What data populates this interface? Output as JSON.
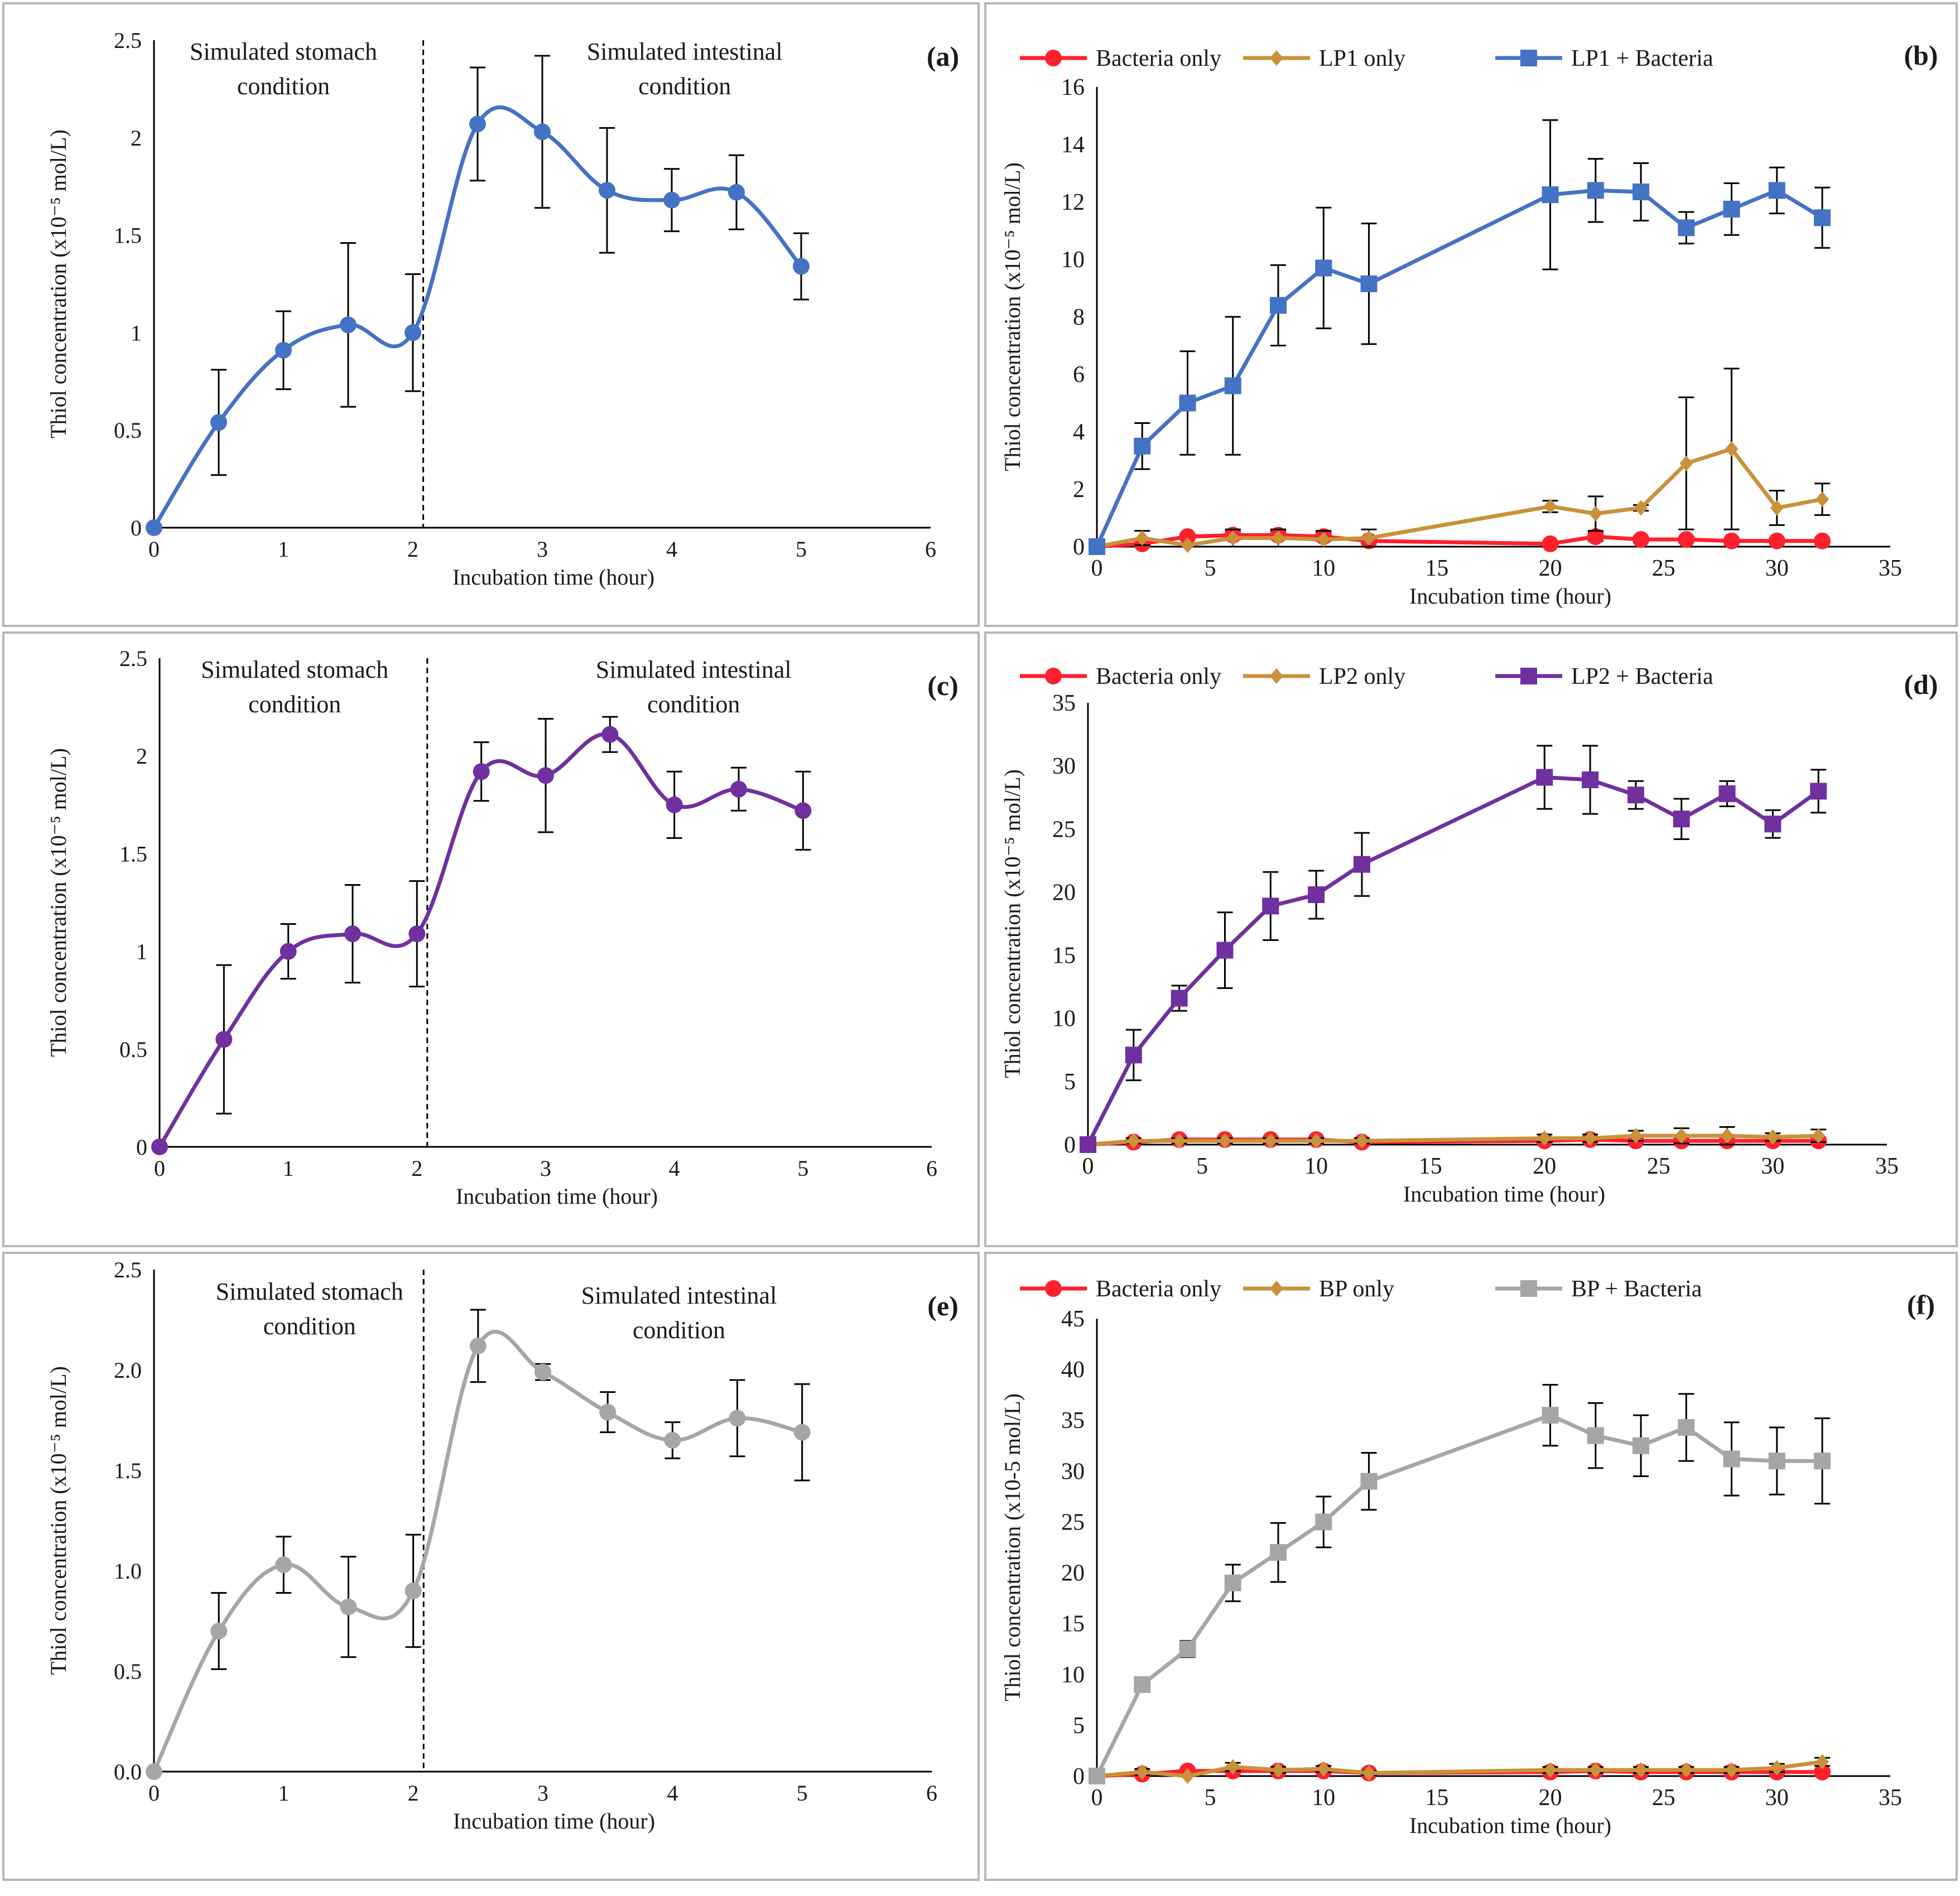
{
  "figure": {
    "background": "#ffffff",
    "frame_color": "#b7b7b7"
  },
  "chart_data": [
    {
      "panel": "(a)",
      "type": "line",
      "smooth": true,
      "ylabel": "Thiol concentration (x10⁻⁵ mol/L)",
      "xlabel": "Incubation time (hour)",
      "xlim": [
        0,
        6
      ],
      "ylim": [
        0,
        2.5
      ],
      "xticks": [
        "0",
        "1",
        "2",
        "3",
        "4",
        "5",
        "6"
      ],
      "yticks": [
        "0",
        "0.5",
        "1",
        "1.5",
        "2",
        "2.5"
      ],
      "divider_x": 2.08,
      "region_labels": [
        {
          "lines": [
            "Simulated stomach",
            "condition"
          ],
          "x": 1.0,
          "y": 2.4
        },
        {
          "lines": [
            "Simulated intestinal",
            "condition"
          ],
          "x": 4.1,
          "y": 2.4
        }
      ],
      "legend": [],
      "series": [
        {
          "name": "",
          "color": "#4472c4",
          "marker": "circle",
          "x": [
            0,
            0.5,
            1,
            1.5,
            2,
            2.5,
            3,
            3.5,
            4,
            4.5,
            5
          ],
          "y": [
            0,
            0.54,
            0.91,
            1.04,
            1.0,
            2.07,
            2.03,
            1.73,
            1.68,
            1.72,
            1.34
          ],
          "err": [
            0,
            0.27,
            0.2,
            0.42,
            0.3,
            0.29,
            0.39,
            0.32,
            0.16,
            0.19,
            0.17
          ]
        }
      ]
    },
    {
      "panel": "(b)",
      "type": "line",
      "smooth": false,
      "ylabel": "Thiol concentration (x10⁻⁵ mol/L)",
      "xlabel": "Incubation time (hour)",
      "xlim": [
        0,
        35
      ],
      "ylim": [
        0,
        16
      ],
      "xticks": [
        "0",
        "5",
        "10",
        "15",
        "20",
        "25",
        "30",
        "35"
      ],
      "yticks": [
        "0",
        "2",
        "4",
        "6",
        "8",
        "10",
        "12",
        "14",
        "16"
      ],
      "legend": [
        "Bacteria only",
        "LP1 only",
        "LP1 + Bacteria"
      ],
      "series": [
        {
          "name": "Bacteria only",
          "color": "#ff1f2d",
          "marker": "circle",
          "x": [
            0,
            2,
            4,
            6,
            8,
            10,
            12,
            20,
            22,
            24,
            26,
            28,
            30,
            32
          ],
          "y": [
            0,
            0.1,
            0.35,
            0.4,
            0.4,
            0.35,
            0.2,
            0.1,
            0.35,
            0.25,
            0.25,
            0.2,
            0.2,
            0.2
          ],
          "err": [
            0,
            0.05,
            0.1,
            0.15,
            0.15,
            0.15,
            0.1,
            0.05,
            0.15,
            0.1,
            0.1,
            0.1,
            0.1,
            0.1
          ]
        },
        {
          "name": "LP1 only",
          "color": "#c9913a",
          "marker": "diamond",
          "x": [
            0,
            2,
            4,
            6,
            8,
            10,
            12,
            20,
            22,
            24,
            26,
            28,
            30,
            32
          ],
          "y": [
            0,
            0.3,
            0.05,
            0.3,
            0.3,
            0.25,
            0.3,
            1.4,
            1.15,
            1.35,
            2.9,
            3.4,
            1.35,
            1.65
          ],
          "err": [
            0,
            0.25,
            0.05,
            0.3,
            0.3,
            0.3,
            0.3,
            0.2,
            0.6,
            0.1,
            2.3,
            2.8,
            0.6,
            0.55
          ]
        },
        {
          "name": "LP1 + Bacteria",
          "color": "#4472c4",
          "marker": "square",
          "x": [
            0,
            2,
            4,
            6,
            8,
            10,
            12,
            20,
            22,
            24,
            26,
            28,
            30,
            32
          ],
          "y": [
            0,
            3.5,
            5.0,
            5.6,
            8.4,
            9.7,
            9.15,
            12.25,
            12.4,
            12.35,
            11.1,
            11.75,
            12.4,
            11.45
          ],
          "err": [
            0,
            0.8,
            1.8,
            2.4,
            1.4,
            2.1,
            2.1,
            2.6,
            1.1,
            1.0,
            0.55,
            0.9,
            0.8,
            1.05
          ]
        }
      ]
    },
    {
      "panel": "(c)",
      "type": "line",
      "smooth": true,
      "ylabel": "Thiol concentration (x10⁻⁵ mol/L)",
      "xlabel": "Incubation time (hour)",
      "xlim": [
        0,
        6
      ],
      "ylim": [
        0,
        2.5
      ],
      "xticks": [
        "0",
        "1",
        "2",
        "3",
        "4",
        "5",
        "6"
      ],
      "yticks": [
        "0",
        "0.5",
        "1",
        "1.5",
        "2",
        "2.5"
      ],
      "divider_x": 2.08,
      "region_labels": [
        {
          "lines": [
            "Simulated stomach",
            "condition"
          ],
          "x": 1.05,
          "y": 2.4
        },
        {
          "lines": [
            "Simulated intestinal",
            "condition"
          ],
          "x": 4.15,
          "y": 2.4
        }
      ],
      "legend": [],
      "series": [
        {
          "name": "",
          "color": "#7030a0",
          "marker": "circle",
          "x": [
            0,
            0.5,
            1,
            1.5,
            2,
            2.5,
            3,
            3.5,
            4,
            4.5,
            5
          ],
          "y": [
            0,
            0.55,
            1.0,
            1.09,
            1.09,
            1.92,
            1.9,
            2.11,
            1.75,
            1.83,
            1.72
          ],
          "err": [
            0,
            0.38,
            0.14,
            0.25,
            0.27,
            0.15,
            0.29,
            0.09,
            0.17,
            0.11,
            0.2
          ]
        }
      ]
    },
    {
      "panel": "(d)",
      "type": "line",
      "smooth": false,
      "ylabel": "Thiol concentration (x10⁻⁵ mol/L)",
      "xlabel": "Incubation time (hour)",
      "xlim": [
        0,
        35
      ],
      "ylim": [
        0,
        35
      ],
      "xticks": [
        "0",
        "5",
        "10",
        "15",
        "20",
        "25",
        "30",
        "35"
      ],
      "yticks": [
        "0",
        "5",
        "10",
        "15",
        "20",
        "25",
        "30",
        "35"
      ],
      "legend": [
        "Bacteria only",
        "LP2 only",
        "LP2 + Bacteria"
      ],
      "series": [
        {
          "name": "Bacteria only",
          "color": "#ff1f2d",
          "marker": "circle",
          "x": [
            0,
            2,
            4,
            6,
            8,
            10,
            12,
            20,
            22,
            24,
            26,
            28,
            30,
            32
          ],
          "y": [
            0,
            0.2,
            0.4,
            0.4,
            0.4,
            0.4,
            0.2,
            0.3,
            0.4,
            0.3,
            0.3,
            0.3,
            0.3,
            0.3
          ],
          "err": [
            0,
            0.1,
            0.2,
            0.2,
            0.2,
            0.2,
            0.1,
            0.1,
            0.2,
            0.1,
            0.1,
            0.1,
            0.1,
            0.1
          ]
        },
        {
          "name": "LP2 only",
          "color": "#c9913a",
          "marker": "diamond",
          "x": [
            0,
            2,
            4,
            6,
            8,
            10,
            12,
            20,
            22,
            24,
            26,
            28,
            30,
            32
          ],
          "y": [
            0,
            0.3,
            0.3,
            0.3,
            0.3,
            0.3,
            0.3,
            0.5,
            0.5,
            0.7,
            0.7,
            0.7,
            0.6,
            0.7
          ],
          "err": [
            0,
            0.2,
            0.2,
            0.2,
            0.2,
            0.2,
            0.2,
            0.3,
            0.3,
            0.4,
            0.6,
            0.7,
            0.3,
            0.5
          ]
        },
        {
          "name": "LP2 + Bacteria",
          "color": "#7030a0",
          "marker": "square",
          "x": [
            0,
            2,
            4,
            6,
            8,
            10,
            12,
            20,
            22,
            24,
            26,
            28,
            30,
            32
          ],
          "y": [
            0,
            7.1,
            11.6,
            15.4,
            18.9,
            19.8,
            22.2,
            29.1,
            28.9,
            27.7,
            25.8,
            27.8,
            25.4,
            28.0
          ],
          "err": [
            0,
            2.0,
            1.0,
            3.0,
            2.7,
            1.9,
            2.5,
            2.5,
            2.7,
            1.1,
            1.6,
            1.0,
            1.1,
            1.7
          ]
        }
      ]
    },
    {
      "panel": "(e)",
      "type": "line",
      "smooth": true,
      "ylabel": "Thiol concentration (x10⁻⁵ mol/L)",
      "xlabel": "Incubation time (hour)",
      "xlim": [
        0,
        6
      ],
      "ylim": [
        0,
        2.5
      ],
      "xticks": [
        "0",
        "1",
        "2",
        "3",
        "4",
        "5",
        "6"
      ],
      "yticks": [
        "0.0",
        "0.5",
        "1.0",
        "1.5",
        "2.0",
        "2.5"
      ],
      "divider_x": 2.08,
      "region_labels": [
        {
          "lines": [
            "Simulated stomach",
            "condition"
          ],
          "x": 1.2,
          "y": 2.35
        },
        {
          "lines": [
            "Simulated intestinal",
            "condition"
          ],
          "x": 4.05,
          "y": 2.33
        }
      ],
      "legend": [],
      "series": [
        {
          "name": "",
          "color": "#a6a6a6",
          "marker": "circle",
          "x": [
            0,
            0.5,
            1,
            1.5,
            2,
            2.5,
            3,
            3.5,
            4,
            4.5,
            5
          ],
          "y": [
            0,
            0.7,
            1.03,
            0.82,
            0.9,
            2.12,
            1.99,
            1.79,
            1.65,
            1.76,
            1.69
          ],
          "err": [
            0,
            0.19,
            0.14,
            0.25,
            0.28,
            0.18,
            0.04,
            0.1,
            0.09,
            0.19,
            0.24
          ]
        }
      ]
    },
    {
      "panel": "(f)",
      "type": "line",
      "smooth": false,
      "ylabel": "Thiol concentration (x10-5 mol/L)",
      "xlabel": "Incubation time (hour)",
      "xlim": [
        0,
        35
      ],
      "ylim": [
        0,
        45
      ],
      "xticks": [
        "0",
        "5",
        "10",
        "15",
        "20",
        "25",
        "30",
        "35"
      ],
      "yticks": [
        "0",
        "5",
        "10",
        "15",
        "20",
        "25",
        "30",
        "35",
        "40",
        "45"
      ],
      "legend": [
        "Bacteria only",
        "BP only",
        "BP + Bacteria"
      ],
      "series": [
        {
          "name": "Bacteria only",
          "color": "#ff1f2d",
          "marker": "circle",
          "x": [
            0,
            2,
            4,
            6,
            8,
            10,
            12,
            20,
            22,
            24,
            26,
            28,
            30,
            32
          ],
          "y": [
            0,
            0.2,
            0.5,
            0.5,
            0.5,
            0.5,
            0.3,
            0.4,
            0.5,
            0.4,
            0.4,
            0.4,
            0.4,
            0.4
          ],
          "err": [
            0,
            0.1,
            0.2,
            0.2,
            0.2,
            0.2,
            0.1,
            0.1,
            0.2,
            0.1,
            0.1,
            0.1,
            0.1,
            0.1
          ]
        },
        {
          "name": "BP only",
          "color": "#c9913a",
          "marker": "diamond",
          "x": [
            0,
            2,
            4,
            6,
            8,
            10,
            12,
            20,
            22,
            24,
            26,
            28,
            30,
            32
          ],
          "y": [
            0,
            0.4,
            0.0,
            0.9,
            0.6,
            0.7,
            0.3,
            0.6,
            0.6,
            0.6,
            0.6,
            0.6,
            0.8,
            1.4
          ],
          "err": [
            0,
            0.3,
            0.1,
            0.4,
            0.3,
            0.3,
            0.2,
            0.3,
            0.3,
            0.3,
            0.3,
            0.3,
            0.4,
            0.4
          ]
        },
        {
          "name": "BP + Bacteria",
          "color": "#a6a6a6",
          "marker": "square",
          "x": [
            0,
            2,
            4,
            6,
            8,
            10,
            12,
            20,
            22,
            24,
            26,
            28,
            30,
            32
          ],
          "y": [
            0,
            9.0,
            12.5,
            19.0,
            22.0,
            25.0,
            29.0,
            35.5,
            33.5,
            32.5,
            34.3,
            31.2,
            31.0,
            31.0
          ],
          "err": [
            0,
            0.5,
            0.8,
            1.8,
            2.9,
            2.5,
            2.8,
            3.0,
            3.2,
            3.0,
            3.3,
            3.6,
            3.3,
            4.2
          ]
        }
      ]
    }
  ]
}
